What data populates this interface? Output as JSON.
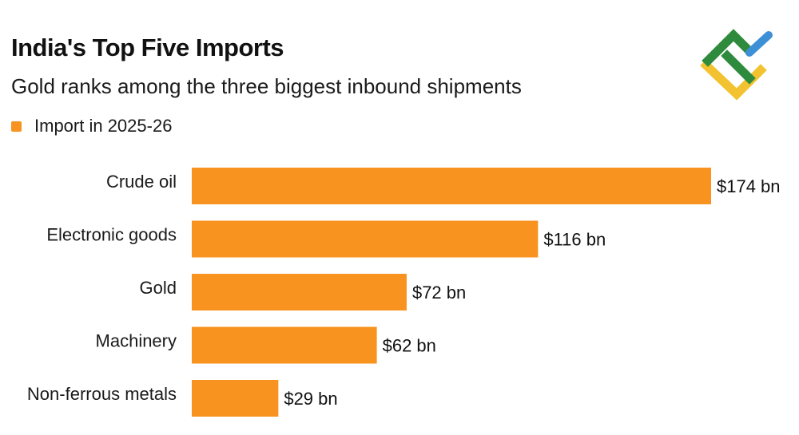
{
  "header": {
    "title": "India's Top Five Imports",
    "subtitle": "Gold ranks among the three biggest inbound shipments"
  },
  "legend": {
    "label": "Import in 2025-26",
    "color": "#f7931e"
  },
  "logo": {
    "icon": "brand-logo-icon",
    "colors": [
      "#2e8b3d",
      "#f2c230",
      "#3d8fd6"
    ]
  },
  "chart_data": {
    "type": "bar",
    "orientation": "horizontal",
    "categories": [
      "Crude oil",
      "Electronic goods",
      "Gold",
      "Machinery",
      "Non-ferrous metals"
    ],
    "series": [
      {
        "name": "Import in 2025-26",
        "values": [
          174,
          116,
          72,
          62,
          29
        ],
        "color": "#f7931e"
      }
    ],
    "data_labels": [
      "$174 bn",
      "$116 bn",
      "$72 bn",
      "$62 bn",
      "$29 bn"
    ],
    "title": "India's Top Five Imports",
    "subtitle": "Gold ranks among the three biggest inbound shipments",
    "xlabel": "",
    "ylabel": "",
    "xlim": [
      0,
      174
    ],
    "grid": false,
    "legend_position": "top-left"
  }
}
